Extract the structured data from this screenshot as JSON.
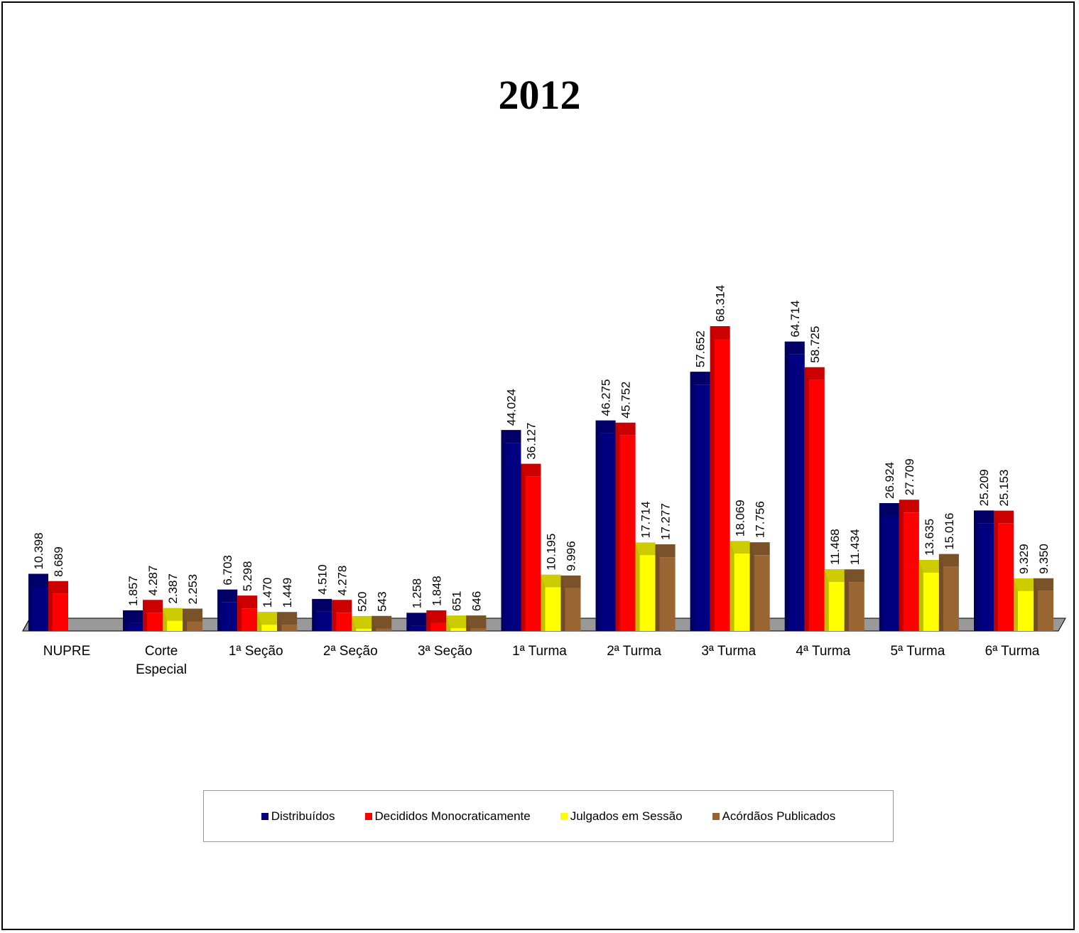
{
  "chart_data": {
    "type": "bar",
    "title": "2012",
    "categories": [
      "NUPRE",
      "Corte Especial",
      "1ª Seção",
      "2ª Seção",
      "3ª Seção",
      "1ª Turma",
      "2ª Turma",
      "3ª Turma",
      "4ª Turma",
      "5ª Turma",
      "6ª Turma"
    ],
    "category_lines": [
      [
        "NUPRE"
      ],
      [
        "Corte",
        "Especial"
      ],
      [
        "1ª Seção"
      ],
      [
        "2ª Seção"
      ],
      [
        "3ª Seção"
      ],
      [
        "1ª Turma"
      ],
      [
        "2ª Turma"
      ],
      [
        "3ª Turma"
      ],
      [
        "4ª Turma"
      ],
      [
        "5ª Turma"
      ],
      [
        "6ª Turma"
      ]
    ],
    "series": [
      {
        "name": "Distribuídos",
        "color": "#000080",
        "values": [
          10398,
          1857,
          6703,
          4510,
          1258,
          44024,
          46275,
          57652,
          64714,
          26924,
          25209
        ],
        "labels": [
          "10.398",
          "1.857",
          "6.703",
          "4.510",
          "1.258",
          "44.024",
          "46.275",
          "57.652",
          "64.714",
          "26.924",
          "25.209"
        ]
      },
      {
        "name": "Decididos Monocraticamente",
        "color": "#ff0000",
        "values": [
          8689,
          4287,
          5298,
          4278,
          1848,
          36127,
          45752,
          68314,
          58725,
          27709,
          25153
        ],
        "labels": [
          "8.689",
          "4.287",
          "5.298",
          "4.278",
          "1.848",
          "36.127",
          "45.752",
          "68.314",
          "58.725",
          "27.709",
          "25.153"
        ]
      },
      {
        "name": "Julgados em Sessão",
        "color": "#ffff00",
        "values": [
          null,
          2387,
          1470,
          520,
          651,
          10195,
          17714,
          18069,
          11468,
          13635,
          9329
        ],
        "labels": [
          null,
          "2.387",
          "1.470",
          "520",
          "651",
          "10.195",
          "17.714",
          "18.069",
          "11.468",
          "13.635",
          "9.329"
        ]
      },
      {
        "name": "Acórdãos Publicados",
        "color": "#996633",
        "values": [
          null,
          2253,
          1449,
          543,
          646,
          9996,
          17277,
          17756,
          11434,
          15016,
          9350
        ],
        "labels": [
          null,
          "2.253",
          "1.449",
          "543",
          "646",
          "9.996",
          "17.277",
          "17.756",
          "11.434",
          "15.016",
          "9.350"
        ]
      }
    ],
    "ylim": [
      0,
      70000
    ],
    "grid": false,
    "legend_position": "bottom"
  }
}
